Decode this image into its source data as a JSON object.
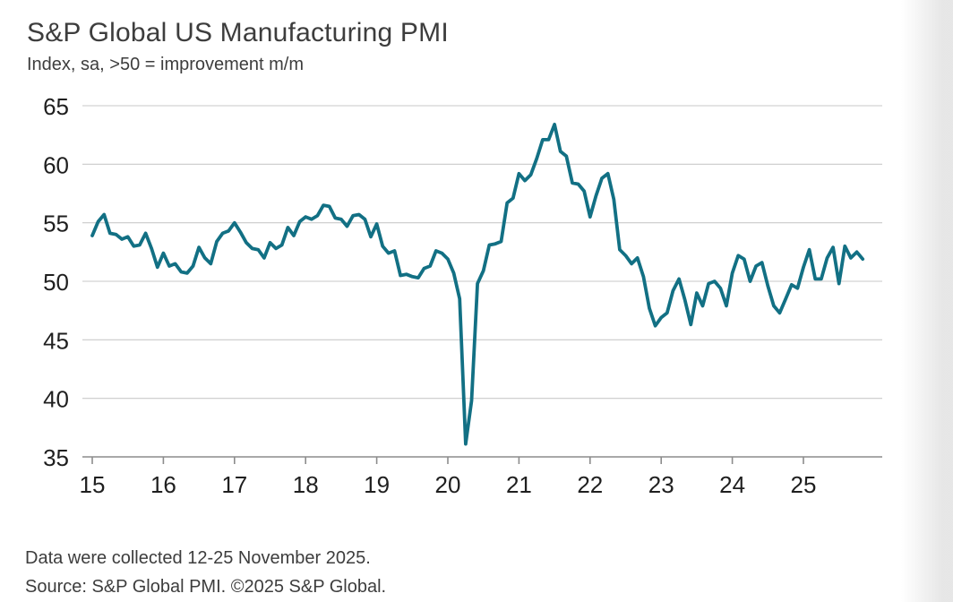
{
  "page": {
    "title": "S&P Global US Manufacturing PMI",
    "subtitle": "Index, sa, >50 = improvement m/m",
    "footnote1": "Data were collected 12-25 November 2025.",
    "footnote2": "Source: S&P Global PMI. ©2025 S&P Global."
  },
  "chart_data": {
    "type": "line",
    "title": "S&P Global US Manufacturing PMI",
    "subtitle": "Index, sa, >50 = improvement m/m",
    "xlabel": "",
    "ylabel": "",
    "ylim": [
      35,
      65
    ],
    "y_ticks": [
      35,
      40,
      45,
      50,
      55,
      60,
      65
    ],
    "x_tick_labels": [
      "15",
      "16",
      "17",
      "18",
      "19",
      "20",
      "21",
      "22",
      "23",
      "24",
      "25"
    ],
    "grid": "horizontal",
    "legend": "none",
    "line_color": "#127084",
    "grid_color": "#c9c9c9",
    "axis_color": "#8c8c8c",
    "text_color": "#1f1f1f",
    "series": [
      {
        "name": "US Manufacturing PMI",
        "start": "2015-01",
        "end": "2025-11",
        "frequency": "monthly",
        "values": [
          53.9,
          55.1,
          55.7,
          54.1,
          54.0,
          53.6,
          53.8,
          53.0,
          53.1,
          54.1,
          52.8,
          51.2,
          52.4,
          51.3,
          51.5,
          50.8,
          50.7,
          51.3,
          52.9,
          52.0,
          51.5,
          53.4,
          54.1,
          54.3,
          55.0,
          54.2,
          53.3,
          52.8,
          52.7,
          52.0,
          53.3,
          52.8,
          53.1,
          54.6,
          53.9,
          55.1,
          55.5,
          55.3,
          55.6,
          56.5,
          56.4,
          55.4,
          55.3,
          54.7,
          55.6,
          55.7,
          55.3,
          53.8,
          54.9,
          53.0,
          52.4,
          52.6,
          50.5,
          50.6,
          50.4,
          50.3,
          51.1,
          51.3,
          52.6,
          52.4,
          51.9,
          50.7,
          48.5,
          36.1,
          39.8,
          49.8,
          50.9,
          53.1,
          53.2,
          53.4,
          56.7,
          57.1,
          59.2,
          58.6,
          59.1,
          60.5,
          62.1,
          62.1,
          63.4,
          61.1,
          60.7,
          58.4,
          58.3,
          57.7,
          55.5,
          57.3,
          58.8,
          59.2,
          57.0,
          52.7,
          52.2,
          51.5,
          52.0,
          50.4,
          47.7,
          46.2,
          46.9,
          47.3,
          49.2,
          50.2,
          48.4,
          46.3,
          49.0,
          47.9,
          49.8,
          50.0,
          49.4,
          47.9,
          50.7,
          52.2,
          51.9,
          50.0,
          51.3,
          51.6,
          49.6,
          47.9,
          47.3,
          48.5,
          49.7,
          49.4,
          51.2,
          52.7,
          50.2,
          50.2,
          52.0,
          52.9,
          49.8,
          53.0,
          52.0,
          52.5,
          51.9
        ]
      }
    ]
  }
}
